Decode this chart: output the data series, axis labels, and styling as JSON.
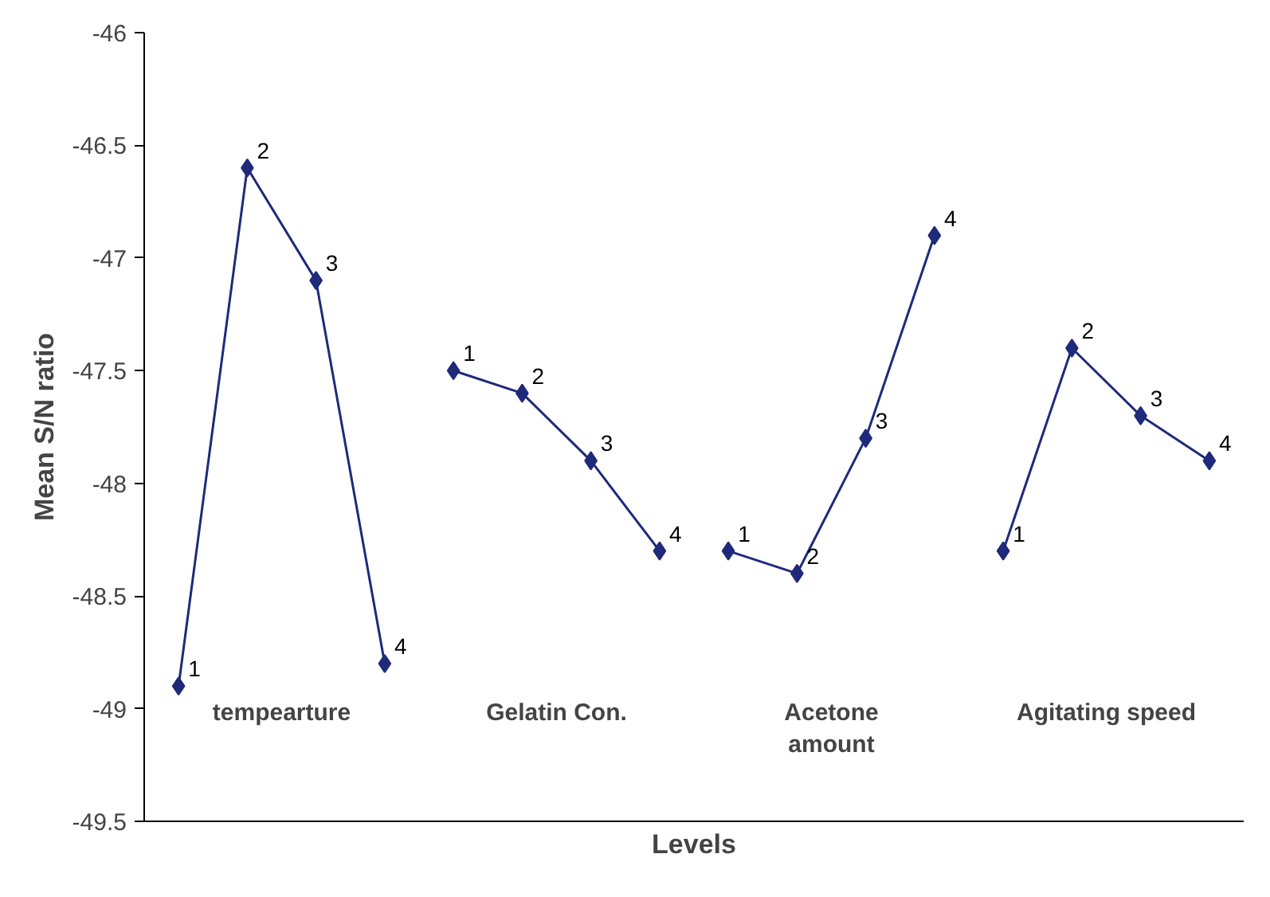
{
  "chart_data": {
    "type": "line",
    "xlabel": "Levels",
    "ylabel": "Mean S/N ratio",
    "categories": [
      null,
      null,
      null,
      null,
      null,
      null,
      null,
      null,
      null,
      null,
      null,
      null,
      null,
      null,
      null,
      null
    ],
    "series": [
      {
        "color": "#1f2a7a",
        "values": [
          -48.9,
          -46.6,
          -47.1,
          -48.8,
          null,
          null,
          null,
          null,
          null,
          null,
          null,
          null,
          null,
          null,
          null,
          null
        ]
      },
      {
        "color": "#1f2a7a",
        "values": [
          null,
          null,
          null,
          null,
          -47.5,
          -47.6,
          -47.9,
          -48.3,
          null,
          null,
          null,
          null,
          null,
          null,
          null,
          null
        ]
      },
      {
        "color": "#1f2a7a",
        "values": [
          null,
          null,
          null,
          null,
          null,
          null,
          null,
          null,
          -48.3,
          -48.4,
          -47.8,
          -46.9,
          null,
          null,
          null,
          null
        ]
      },
      {
        "color": "#1f2a7a",
        "values": [
          null,
          null,
          null,
          null,
          null,
          null,
          null,
          null,
          null,
          null,
          null,
          null,
          -48.3,
          -47.4,
          -47.7,
          -47.9
        ]
      }
    ],
    "annotations": [
      "tempearture",
      "Gelatin Con.",
      "Acetone\namount",
      "Agitating speed",
      "1",
      "2",
      "3",
      "4",
      "1",
      "2",
      "3",
      "4",
      "1",
      "2",
      "3",
      "4",
      "1",
      "2",
      "3",
      "4"
    ],
    "ylim": [
      -49.5,
      -46
    ],
    "yticks": [
      -49.5,
      -49,
      -48.5,
      -48,
      -47.5,
      -47,
      -46.5,
      -46
    ],
    "grid": false,
    "marker": "diamond",
    "line_style": "solid"
  }
}
